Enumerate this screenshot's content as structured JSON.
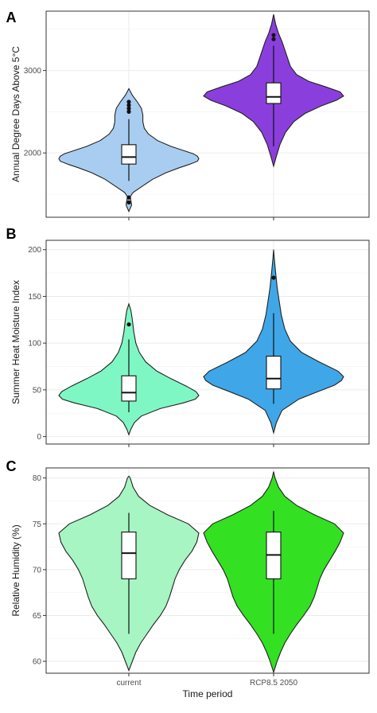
{
  "chart_data": [
    {
      "panel": "A",
      "type": "violin",
      "ylabel": "Annual Degree Days Above 5°C",
      "ylim": [
        1220,
        3720
      ],
      "yticks": [
        2000,
        3000
      ],
      "categories": [
        "current",
        "RCP8.5 2050"
      ],
      "grid": true,
      "series": [
        {
          "category": "current",
          "color": "#a9cdf0",
          "profile": [
            [
              1290,
              0
            ],
            [
              1330,
              0.02
            ],
            [
              1370,
              0.04
            ],
            [
              1420,
              0.03
            ],
            [
              1470,
              0.02
            ],
            [
              1520,
              0.06
            ],
            [
              1600,
              0.2
            ],
            [
              1680,
              0.34
            ],
            [
              1760,
              0.53
            ],
            [
              1820,
              0.72
            ],
            [
              1860,
              0.86
            ],
            [
              1900,
              0.98
            ],
            [
              1930,
              1.0
            ],
            [
              1960,
              0.98
            ],
            [
              1990,
              0.92
            ],
            [
              2030,
              0.78
            ],
            [
              2080,
              0.6
            ],
            [
              2150,
              0.41
            ],
            [
              2230,
              0.28
            ],
            [
              2300,
              0.22
            ],
            [
              2380,
              0.2
            ],
            [
              2460,
              0.2
            ],
            [
              2540,
              0.18
            ],
            [
              2620,
              0.12
            ],
            [
              2700,
              0.05
            ],
            [
              2780,
              0
            ]
          ],
          "box": {
            "q1": 1865,
            "median": 1950,
            "q3": 2100,
            "whisker_low": 1660,
            "whisker_high": 2410
          },
          "outliers": [
            1400,
            1460,
            2500,
            2540,
            2580,
            2620
          ]
        },
        {
          "category": "RCP8.5 2050",
          "color": "#8a3fdc",
          "profile": [
            [
              1840,
              0
            ],
            [
              1960,
              0.04
            ],
            [
              2100,
              0.09
            ],
            [
              2250,
              0.17
            ],
            [
              2380,
              0.29
            ],
            [
              2480,
              0.45
            ],
            [
              2570,
              0.68
            ],
            [
              2640,
              0.9
            ],
            [
              2690,
              1.0
            ],
            [
              2740,
              0.95
            ],
            [
              2800,
              0.75
            ],
            [
              2870,
              0.5
            ],
            [
              2950,
              0.33
            ],
            [
              3050,
              0.24
            ],
            [
              3150,
              0.2
            ],
            [
              3250,
              0.16
            ],
            [
              3350,
              0.12
            ],
            [
              3450,
              0.07
            ],
            [
              3560,
              0.03
            ],
            [
              3680,
              0
            ]
          ],
          "box": {
            "q1": 2600,
            "median": 2680,
            "q3": 2850,
            "whisker_low": 2080,
            "whisker_high": 3300
          },
          "outliers": [
            3380,
            3430
          ]
        }
      ]
    },
    {
      "panel": "B",
      "type": "violin",
      "ylabel": "Summer Heat Moisture Index",
      "ylim": [
        -8,
        210
      ],
      "yticks": [
        0,
        50,
        100,
        150,
        200
      ],
      "categories": [
        "current",
        "RCP8.5 2050"
      ],
      "grid": true,
      "series": [
        {
          "category": "current",
          "color": "#7ff7c4",
          "profile": [
            [
              2,
              0
            ],
            [
              8,
              0.03
            ],
            [
              15,
              0.08
            ],
            [
              22,
              0.18
            ],
            [
              30,
              0.45
            ],
            [
              36,
              0.78
            ],
            [
              40,
              0.95
            ],
            [
              44,
              1.0
            ],
            [
              48,
              0.96
            ],
            [
              54,
              0.82
            ],
            [
              62,
              0.6
            ],
            [
              70,
              0.4
            ],
            [
              80,
              0.24
            ],
            [
              90,
              0.15
            ],
            [
              100,
              0.1
            ],
            [
              112,
              0.07
            ],
            [
              125,
              0.05
            ],
            [
              135,
              0.03
            ],
            [
              142,
              0
            ]
          ],
          "box": {
            "q1": 38,
            "median": 47,
            "q3": 65,
            "whisker_low": 26,
            "whisker_high": 104
          },
          "outliers": [
            120
          ]
        },
        {
          "category": "RCP8.5 2050",
          "color": "#3fa7e8",
          "profile": [
            [
              4,
              0
            ],
            [
              15,
              0.04
            ],
            [
              28,
              0.12
            ],
            [
              40,
              0.36
            ],
            [
              48,
              0.63
            ],
            [
              55,
              0.87
            ],
            [
              60,
              0.97
            ],
            [
              64,
              1.0
            ],
            [
              70,
              0.92
            ],
            [
              80,
              0.65
            ],
            [
              90,
              0.4
            ],
            [
              102,
              0.24
            ],
            [
              115,
              0.16
            ],
            [
              130,
              0.11
            ],
            [
              145,
              0.08
            ],
            [
              160,
              0.05
            ],
            [
              175,
              0.03
            ],
            [
              190,
              0.01
            ],
            [
              200,
              0
            ]
          ],
          "box": {
            "q1": 51,
            "median": 62,
            "q3": 86,
            "whisker_low": 35,
            "whisker_high": 132
          },
          "outliers": [
            170
          ]
        }
      ]
    },
    {
      "panel": "C",
      "type": "violin",
      "ylabel": "Relative Humidity (%)",
      "ylim": [
        58.7,
        81.1
      ],
      "yticks": [
        60,
        65,
        70,
        75,
        80
      ],
      "categories": [
        "current",
        "RCP8.5 2050"
      ],
      "grid": true,
      "series": [
        {
          "category": "current",
          "color": "#a6f5c2",
          "profile": [
            [
              59,
              0
            ],
            [
              60,
              0.05
            ],
            [
              61,
              0.1
            ],
            [
              62,
              0.17
            ],
            [
              63,
              0.26
            ],
            [
              64,
              0.35
            ],
            [
              65,
              0.45
            ],
            [
              66,
              0.53
            ],
            [
              67,
              0.58
            ],
            [
              68,
              0.62
            ],
            [
              69,
              0.66
            ],
            [
              70,
              0.72
            ],
            [
              71,
              0.8
            ],
            [
              72,
              0.9
            ],
            [
              73,
              0.97
            ],
            [
              74,
              1.0
            ],
            [
              75,
              0.85
            ],
            [
              76,
              0.55
            ],
            [
              77,
              0.3
            ],
            [
              78,
              0.14
            ],
            [
              79,
              0.06
            ],
            [
              80,
              0.02
            ],
            [
              80.2,
              0
            ]
          ],
          "box": {
            "q1": 69,
            "median": 71.8,
            "q3": 74.1,
            "whisker_low": 63,
            "whisker_high": 76.2
          },
          "outliers": []
        },
        {
          "category": "RCP8.5 2050",
          "color": "#33e022",
          "profile": [
            [
              58.8,
              0
            ],
            [
              60,
              0.05
            ],
            [
              61,
              0.1
            ],
            [
              62,
              0.16
            ],
            [
              63,
              0.24
            ],
            [
              64,
              0.33
            ],
            [
              65,
              0.43
            ],
            [
              66,
              0.52
            ],
            [
              67,
              0.58
            ],
            [
              68,
              0.62
            ],
            [
              69,
              0.66
            ],
            [
              70,
              0.72
            ],
            [
              71,
              0.8
            ],
            [
              72,
              0.88
            ],
            [
              73,
              0.95
            ],
            [
              74,
              1.0
            ],
            [
              75,
              0.87
            ],
            [
              76,
              0.58
            ],
            [
              77,
              0.33
            ],
            [
              78,
              0.16
            ],
            [
              79,
              0.07
            ],
            [
              80,
              0.02
            ],
            [
              80.7,
              0
            ]
          ],
          "box": {
            "q1": 69,
            "median": 71.6,
            "q3": 74.1,
            "whisker_low": 63,
            "whisker_high": 76.4
          },
          "outliers": []
        }
      ]
    }
  ],
  "xlabel": "Time period",
  "xticks": [
    "current",
    "RCP8.5 2050"
  ]
}
